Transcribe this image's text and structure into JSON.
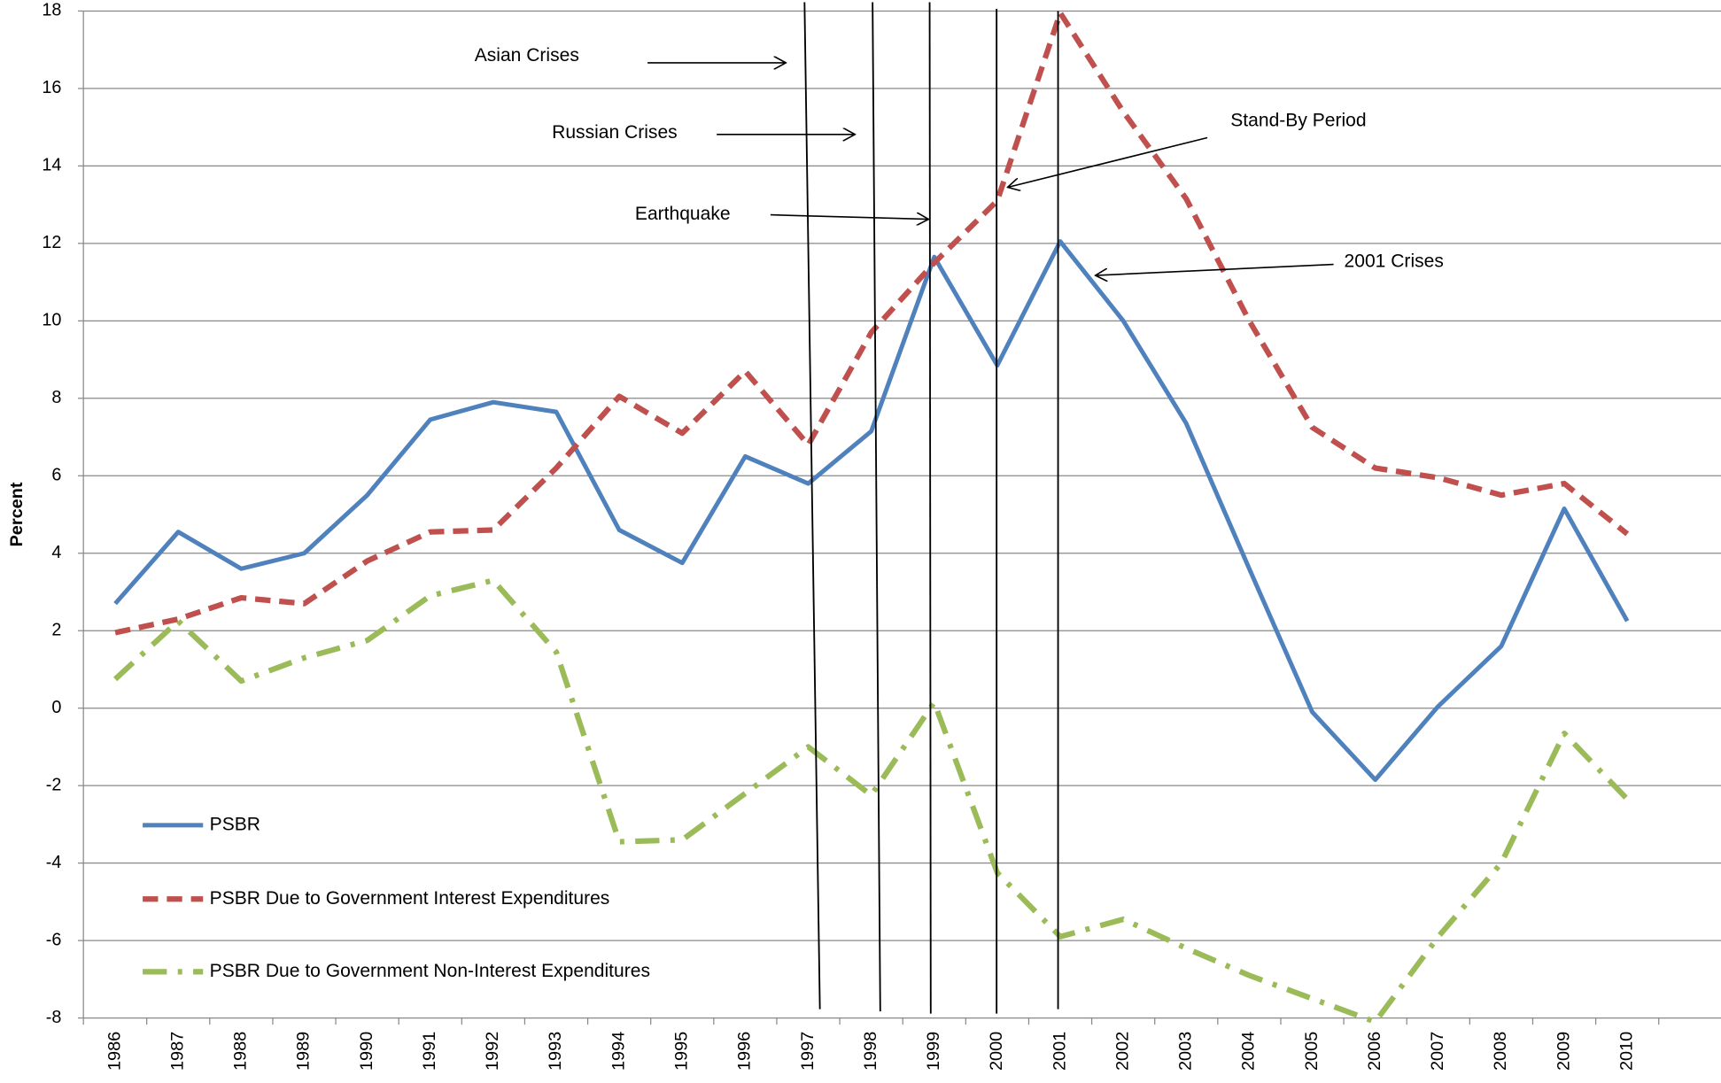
{
  "chart_data": {
    "type": "line",
    "y_label": "Percent",
    "categories": [
      "1986",
      "1987",
      "1988",
      "1989",
      "1990",
      "1991",
      "1992",
      "1993",
      "1994",
      "1995",
      "1996",
      "1997",
      "1998",
      "1999",
      "2000",
      "2001",
      "2002",
      "2003",
      "2004",
      "2005",
      "2006",
      "2007",
      "2008",
      "2009",
      "2010"
    ],
    "series": [
      {
        "name": "PSBR",
        "color": "#4f81bd",
        "style": "solid",
        "values": [
          2.7,
          4.55,
          3.6,
          4.0,
          5.5,
          7.45,
          7.9,
          7.65,
          4.6,
          3.75,
          6.5,
          5.8,
          7.15,
          11.65,
          8.85,
          12.05,
          10.0,
          7.35,
          3.6,
          -0.1,
          -1.85,
          0.05,
          1.6,
          5.15,
          2.25
        ]
      },
      {
        "name": "PSBR Due to Government Interest Expenditures",
        "color": "#c0504d",
        "style": "dashed",
        "values": [
          1.95,
          2.3,
          2.85,
          2.7,
          3.8,
          4.55,
          4.6,
          6.2,
          8.05,
          7.1,
          8.7,
          6.8,
          9.7,
          11.5,
          13.1,
          17.95,
          15.4,
          13.15,
          10.0,
          7.25,
          6.2,
          5.95,
          5.5,
          5.8,
          4.5
        ]
      },
      {
        "name": "PSBR Due to Government Non-Interest Expenditures",
        "color": "#9bbb59",
        "style": "dashdot",
        "values": [
          0.75,
          2.25,
          0.7,
          1.3,
          1.75,
          2.9,
          3.3,
          1.45,
          -3.45,
          -3.4,
          -2.2,
          -1.0,
          -2.25,
          0.15,
          -4.25,
          -5.9,
          -5.45,
          -6.2,
          -6.9,
          -7.5,
          -8.1,
          -5.9,
          -4.0,
          -0.65,
          -2.35
        ]
      }
    ],
    "annotations": [
      "Asian Crises",
      "Russian Crises",
      "Earthquake",
      "Stand-By Period",
      "2001 Crises"
    ],
    "ylim": [
      -8,
      18
    ],
    "yticks": [
      -8,
      -6,
      -4,
      -2,
      0,
      2,
      4,
      6,
      8,
      10,
      12,
      14,
      16,
      18
    ],
    "grid": true,
    "legend": "lower left"
  }
}
